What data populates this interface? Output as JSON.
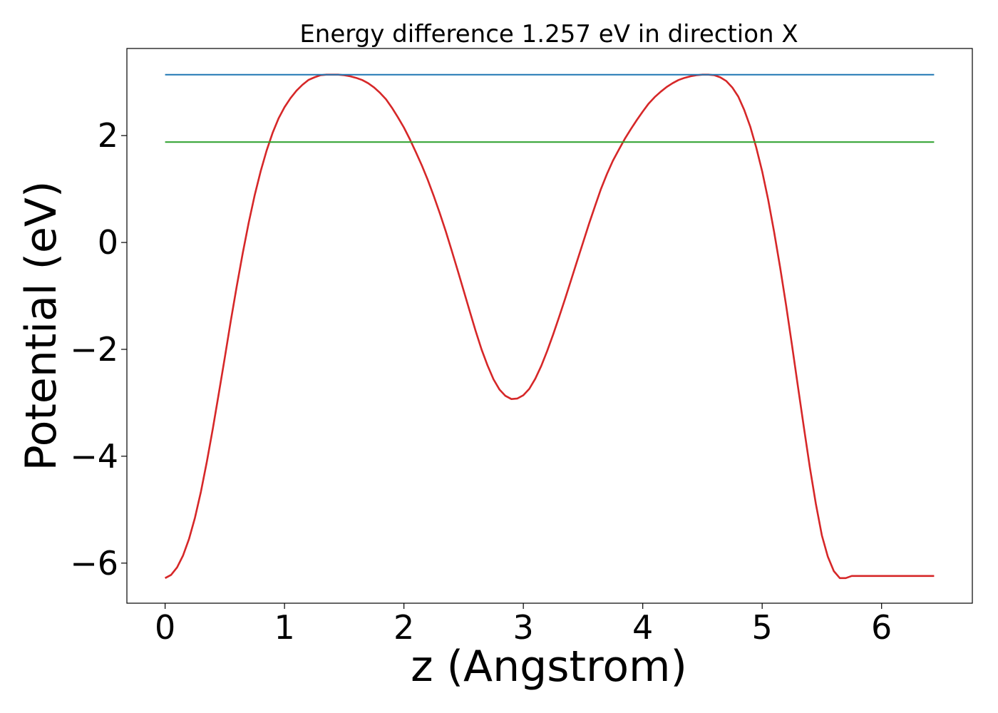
{
  "chart_data": {
    "type": "line",
    "title": "Energy difference 1.257 eV in direction X",
    "xlabel": "z (Angstrom)",
    "ylabel": "Potential (eV)",
    "xlim": [
      -0.32,
      6.76
    ],
    "ylim": [
      -6.75,
      3.63
    ],
    "xticks": [
      0,
      1,
      2,
      3,
      4,
      5,
      6
    ],
    "yticks": [
      -6,
      -4,
      -2,
      0,
      2
    ],
    "xtick_labels": [
      "0",
      "1",
      "2",
      "3",
      "4",
      "5",
      "6"
    ],
    "ytick_labels": [
      "−6",
      "−4",
      "−2",
      "0",
      "2"
    ],
    "grid": false,
    "legend": "none",
    "series": [
      {
        "color": "#d62728",
        "x": [
          0.0,
          0.05,
          0.1,
          0.15,
          0.2,
          0.25,
          0.3,
          0.35,
          0.4,
          0.45,
          0.5,
          0.55,
          0.6,
          0.65,
          0.7,
          0.75,
          0.8,
          0.85,
          0.9,
          0.95,
          1.0,
          1.05,
          1.1,
          1.15,
          1.2,
          1.25,
          1.3,
          1.35,
          1.4,
          1.45,
          1.5,
          1.55,
          1.6,
          1.65,
          1.7,
          1.75,
          1.8,
          1.85,
          1.9,
          1.95,
          2.0,
          2.05,
          2.1,
          2.15,
          2.2,
          2.25,
          2.3,
          2.35,
          2.4,
          2.45,
          2.5,
          2.55,
          2.6,
          2.65,
          2.7,
          2.75,
          2.8,
          2.85,
          2.9,
          2.95,
          3.0,
          3.05,
          3.1,
          3.15,
          3.2,
          3.25,
          3.3,
          3.35,
          3.4,
          3.45,
          3.5,
          3.55,
          3.6,
          3.65,
          3.7,
          3.75,
          3.8,
          3.85,
          3.9,
          3.95,
          4.0,
          4.05,
          4.1,
          4.15,
          4.2,
          4.25,
          4.3,
          4.35,
          4.4,
          4.45,
          4.5,
          4.55,
          4.6,
          4.65,
          4.7,
          4.75,
          4.8,
          4.85,
          4.9,
          4.95,
          5.0,
          5.05,
          5.1,
          5.15,
          5.2,
          5.25,
          5.3,
          5.35,
          5.4,
          5.45,
          5.5,
          5.55,
          5.6,
          5.65,
          5.7,
          5.75,
          5.8,
          5.85,
          5.9,
          5.95,
          6.0,
          6.05,
          6.1,
          6.15,
          6.2,
          6.25,
          6.3,
          6.35,
          6.4,
          6.44
        ],
        "y": [
          -6.28,
          -6.22,
          -6.08,
          -5.86,
          -5.55,
          -5.15,
          -4.66,
          -4.1,
          -3.48,
          -2.82,
          -2.15,
          -1.47,
          -0.82,
          -0.2,
          0.37,
          0.88,
          1.33,
          1.72,
          2.05,
          2.32,
          2.53,
          2.7,
          2.84,
          2.95,
          3.04,
          3.09,
          3.13,
          3.14,
          3.14,
          3.14,
          3.13,
          3.11,
          3.08,
          3.04,
          2.98,
          2.9,
          2.8,
          2.68,
          2.52,
          2.34,
          2.15,
          1.93,
          1.69,
          1.44,
          1.17,
          0.87,
          0.55,
          0.21,
          -0.15,
          -0.52,
          -0.9,
          -1.28,
          -1.65,
          -2.0,
          -2.3,
          -2.56,
          -2.75,
          -2.87,
          -2.93,
          -2.92,
          -2.86,
          -2.74,
          -2.55,
          -2.31,
          -2.03,
          -1.72,
          -1.39,
          -1.05,
          -0.7,
          -0.35,
          0.0,
          0.35,
          0.68,
          1.0,
          1.28,
          1.53,
          1.74,
          1.94,
          2.12,
          2.29,
          2.45,
          2.6,
          2.72,
          2.82,
          2.91,
          2.98,
          3.04,
          3.08,
          3.11,
          3.13,
          3.14,
          3.14,
          3.13,
          3.09,
          3.02,
          2.9,
          2.73,
          2.48,
          2.17,
          1.78,
          1.33,
          0.8,
          0.2,
          -0.46,
          -1.17,
          -1.93,
          -2.7,
          -3.47,
          -4.22,
          -4.9,
          -5.48,
          -5.88,
          -6.15,
          -6.28,
          -6.28,
          -6.24,
          -6.24,
          -6.24,
          -6.24,
          -6.24,
          -6.24,
          -6.24,
          -6.24,
          -6.24,
          -6.24,
          -6.24,
          -6.24,
          -6.24,
          -6.24,
          -6.24
        ]
      },
      {
        "color": "#1f77b4",
        "x": [
          0.0,
          6.44
        ],
        "y": [
          3.14,
          3.14
        ]
      },
      {
        "color": "#2ca02c",
        "x": [
          0.0,
          6.44
        ],
        "y": [
          1.88,
          1.88
        ]
      }
    ]
  }
}
